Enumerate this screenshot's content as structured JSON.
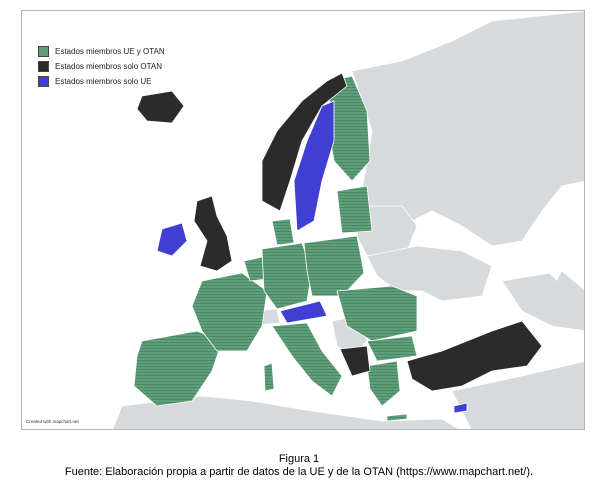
{
  "legend": {
    "items": [
      {
        "label": "Estados miembros UE y OTAN",
        "color": "#5e9e79"
      },
      {
        "label": "Estados miembros solo OTAN",
        "color": "#2b2b2b"
      },
      {
        "label": "Estados miembros solo UE",
        "color": "#3f3fd4"
      }
    ]
  },
  "map": {
    "credit": "Created with mapchart.net",
    "colors": {
      "eu_nato": "#5e9e79",
      "nato_only": "#2b2b2b",
      "eu_only": "#3f3fd4",
      "other": "#d6dadd",
      "sea": "#ffffff"
    },
    "eu_nato_countries": [
      "Portugal",
      "Spain",
      "France",
      "Belgium",
      "Netherlands",
      "Luxembourg",
      "Germany",
      "Denmark",
      "Poland",
      "Czechia",
      "Slovakia",
      "Hungary",
      "Slovenia",
      "Croatia",
      "Italy",
      "Greece",
      "Bulgaria",
      "Romania",
      "Lithuania",
      "Latvia",
      "Estonia",
      "Finland"
    ],
    "nato_only_countries": [
      "Iceland",
      "Norway",
      "United Kingdom",
      "Albania",
      "Montenegro",
      "North Macedonia",
      "Turkey"
    ],
    "eu_only_countries": [
      "Ireland",
      "Sweden",
      "Austria",
      "Cyprus"
    ]
  },
  "caption": {
    "title": "Figura 1",
    "source": "Fuente: Elaboración propia a partir de datos de la UE y de la OTAN (https://www.mapchart.net/)."
  }
}
